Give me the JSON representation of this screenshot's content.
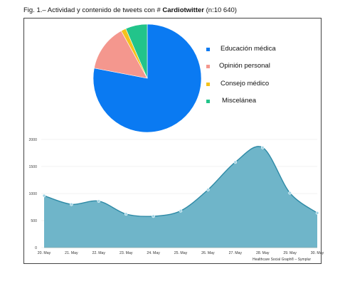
{
  "figure": {
    "title_prefix": "Fig. 1.– Actividad y contenido de tweets con # ",
    "title_bold": "Cardiotwitter",
    "title_suffix": " (n:10 640)",
    "credit": "Healthcare Social Graph® – Symplur"
  },
  "chart_data": [
    {
      "type": "pie",
      "labels": [
        "Educación médica",
        "Opinión personal",
        "Consejo médico",
        "Miscelánea"
      ],
      "values": [
        78,
        14,
        1.5,
        6.5
      ],
      "colors": [
        "#0a7af2",
        "#f4978e",
        "#f4c21b",
        "#22c48a"
      ],
      "legend_position": "right"
    },
    {
      "type": "area",
      "categories": [
        "20. May",
        "21. May",
        "22. May",
        "23. May",
        "24. May",
        "25. May",
        "26. May",
        "27. May",
        "28. May",
        "29. May",
        "30. May"
      ],
      "values": [
        960,
        800,
        860,
        620,
        580,
        680,
        1070,
        1580,
        1850,
        1010,
        640
      ],
      "ylim": [
        0,
        2000
      ],
      "yticks": [
        "0",
        "500",
        "1000",
        "1500",
        "2000"
      ],
      "fill_color": "#6fb5c9",
      "line_color": "#2e8aa6",
      "grid": true
    }
  ]
}
